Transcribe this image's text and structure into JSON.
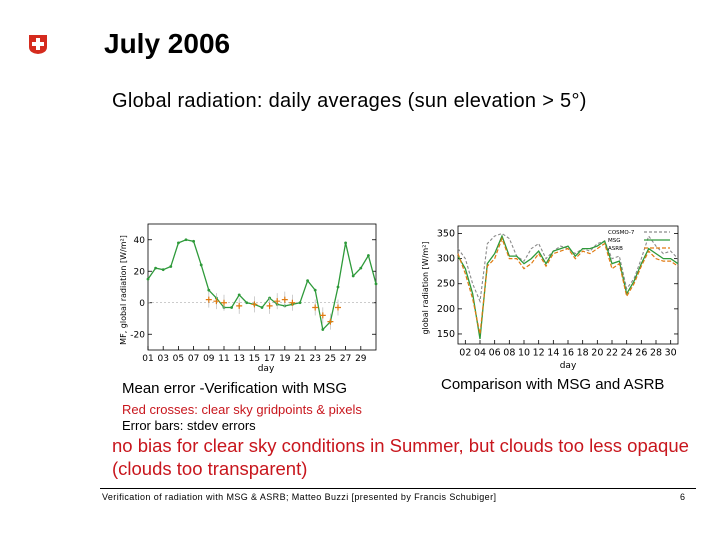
{
  "slide": {
    "title": "July 2006",
    "subtitle": "Global radiation: daily averages (sun elevation > 5°)",
    "caption_left": "Mean error -Verification with MSG",
    "caption_right": "Comparison with MSG and ASRB",
    "note_red": "Red crosses: clear sky gridpoints & pixels",
    "note_black": "Error bars: stdev errors",
    "conclusion": "no bias for clear sky conditions in Summer, but clouds too less opaque (clouds too transparent)",
    "footer": "Verification of radiation with MSG & ASRB; Matteo Buzzi [presented by Francis Schubiger]",
    "page_number": "6",
    "logo": "swiss-cross-icon"
  },
  "colors": {
    "accent_red": "#c8161d",
    "green": "#2e9a3a",
    "orange": "#e07a10",
    "cyan": "#2a9ac8",
    "gray": "#8a8a8a"
  },
  "chart_data": [
    {
      "type": "line",
      "ylabel": "MF, global radiation [W/m²]",
      "xlabel": "day",
      "ylim": [
        -30,
        50
      ],
      "yticks": [
        -20,
        0,
        20,
        40
      ],
      "xlim": [
        1,
        31
      ],
      "xtick_labels": [
        "01",
        "03",
        "05",
        "07",
        "09",
        "11",
        "13",
        "15",
        "17",
        "19",
        "21",
        "23",
        "25",
        "27",
        "29"
      ],
      "series": [
        {
          "name": "mean error",
          "x": [
            1,
            2,
            3,
            4,
            5,
            6,
            7,
            8,
            9,
            10,
            11,
            12,
            13,
            14,
            15,
            16,
            17,
            18,
            19,
            20,
            21,
            22,
            23,
            24,
            25,
            26,
            27,
            28,
            29,
            30,
            31
          ],
          "values": [
            15,
            22,
            21,
            23,
            38,
            40,
            39,
            24,
            8,
            3,
            -3,
            -3,
            5,
            0,
            -1,
            -3,
            3,
            -1,
            -2,
            -1,
            0,
            14,
            8,
            -17,
            -12,
            10,
            38,
            17,
            22,
            30,
            12
          ]
        },
        {
          "name": "clear sky",
          "x": [
            9,
            10,
            11,
            13,
            15,
            17,
            18,
            19,
            20,
            23,
            24,
            25,
            26
          ],
          "values": [
            2,
            1,
            0,
            -2,
            -1,
            -2,
            1,
            2,
            0,
            -3,
            -8,
            -12,
            -3
          ]
        }
      ]
    },
    {
      "type": "line",
      "ylabel": "global radiation [W/m²]",
      "xlabel": "day",
      "ylim": [
        130,
        365
      ],
      "yticks": [
        150,
        200,
        250,
        300,
        350
      ],
      "xlim": [
        1,
        31
      ],
      "xtick_labels": [
        "02",
        "04",
        "06",
        "08",
        "10",
        "12",
        "14",
        "16",
        "18",
        "20",
        "22",
        "24",
        "26",
        "28",
        "30"
      ],
      "legend": [
        "COSMO-7",
        "MSG",
        "ASRB"
      ],
      "series": [
        {
          "name": "COSMO-7",
          "x": [
            1,
            2,
            3,
            4,
            5,
            6,
            7,
            8,
            9,
            10,
            11,
            12,
            13,
            14,
            15,
            16,
            17,
            18,
            19,
            20,
            21,
            22,
            23,
            24,
            25,
            26,
            27,
            28,
            29,
            30,
            31
          ],
          "values": [
            320,
            300,
            250,
            215,
            330,
            345,
            350,
            340,
            305,
            295,
            320,
            330,
            300,
            315,
            325,
            320,
            310,
            320,
            315,
            330,
            335,
            300,
            305,
            240,
            260,
            300,
            345,
            325,
            310,
            315,
            300
          ]
        },
        {
          "name": "MSG",
          "x": [
            1,
            2,
            3,
            4,
            5,
            6,
            7,
            8,
            9,
            10,
            11,
            12,
            13,
            14,
            15,
            16,
            17,
            18,
            19,
            20,
            21,
            22,
            23,
            24,
            25,
            26,
            27,
            28,
            29,
            30,
            31
          ],
          "values": [
            305,
            280,
            230,
            140,
            290,
            310,
            345,
            305,
            305,
            290,
            300,
            315,
            290,
            315,
            320,
            325,
            305,
            320,
            320,
            325,
            335,
            290,
            295,
            230,
            255,
            290,
            320,
            310,
            300,
            300,
            290
          ]
        },
        {
          "name": "ASRB",
          "x": [
            1,
            2,
            3,
            4,
            5,
            6,
            7,
            8,
            9,
            10,
            11,
            12,
            13,
            14,
            15,
            16,
            17,
            18,
            19,
            20,
            21,
            22,
            23,
            24,
            25,
            26,
            27,
            28,
            29,
            30,
            31
          ],
          "values": [
            310,
            270,
            220,
            150,
            285,
            300,
            340,
            300,
            300,
            280,
            290,
            310,
            285,
            310,
            315,
            320,
            300,
            315,
            310,
            320,
            330,
            280,
            290,
            225,
            250,
            285,
            315,
            300,
            295,
            295,
            285
          ]
        }
      ]
    }
  ]
}
